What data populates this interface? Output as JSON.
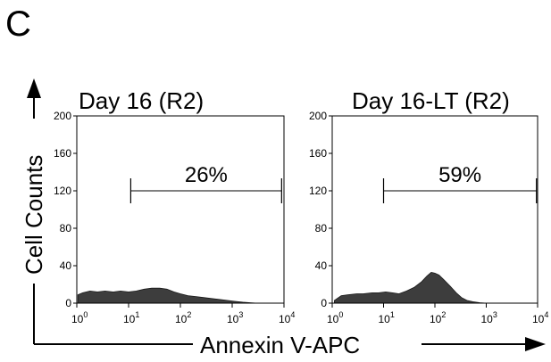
{
  "figure": {
    "panel_letter": "C",
    "y_axis_label": "Cell Counts",
    "x_axis_label": "Annexin V-APC"
  },
  "chart_data": [
    {
      "type": "area",
      "title": "Day 16 (R2)",
      "xlabel": "Annexin V-APC",
      "ylabel": "Cell Counts",
      "xscale": "log",
      "xlim": [
        1,
        10000
      ],
      "ylim": [
        0,
        200
      ],
      "yticks": [
        0,
        40,
        80,
        120,
        160,
        200
      ],
      "xticks": [
        {
          "base": "10",
          "exp": "0"
        },
        {
          "base": "10",
          "exp": "1"
        },
        {
          "base": "10",
          "exp": "2"
        },
        {
          "base": "10",
          "exp": "3"
        },
        {
          "base": "10",
          "exp": "4"
        }
      ],
      "gate": {
        "start": 11,
        "end": 9000,
        "label": "26%"
      },
      "x": [
        1.05,
        1.3,
        1.8,
        2.5,
        3.5,
        5,
        7,
        10,
        14,
        20,
        28,
        40,
        55,
        75,
        100,
        140,
        200,
        280,
        400,
        560,
        800,
        1100,
        1600,
        2200,
        3000
      ],
      "y": [
        9,
        11,
        13,
        12,
        13,
        12,
        13,
        12,
        13,
        15,
        16,
        16,
        15,
        12,
        10,
        8,
        7,
        6,
        5,
        4,
        3,
        2,
        1,
        0.5,
        0
      ]
    },
    {
      "type": "area",
      "title": "Day 16-LT (R2)",
      "xlabel": "Annexin V-APC",
      "ylabel": "Cell Counts",
      "xscale": "log",
      "xlim": [
        1,
        10000
      ],
      "ylim": [
        0,
        200
      ],
      "yticks": [
        0,
        40,
        80,
        120,
        160,
        200
      ],
      "xticks": [
        {
          "base": "10",
          "exp": "0"
        },
        {
          "base": "10",
          "exp": "1"
        },
        {
          "base": "10",
          "exp": "2"
        },
        {
          "base": "10",
          "exp": "3"
        },
        {
          "base": "10",
          "exp": "4"
        }
      ],
      "gate": {
        "start": 10,
        "end": 9500,
        "label": "59%"
      },
      "x": [
        1.1,
        1.5,
        2,
        3,
        4,
        6,
        8,
        11,
        15,
        20,
        28,
        40,
        55,
        70,
        85,
        100,
        120,
        150,
        200,
        260,
        330,
        420,
        550,
        750,
        1000
      ],
      "y": [
        3,
        8,
        9,
        10,
        10,
        11,
        11,
        12,
        11,
        10,
        13,
        17,
        23,
        29,
        33,
        32,
        30,
        25,
        18,
        11,
        6,
        3,
        1.5,
        0.5,
        0
      ]
    }
  ]
}
